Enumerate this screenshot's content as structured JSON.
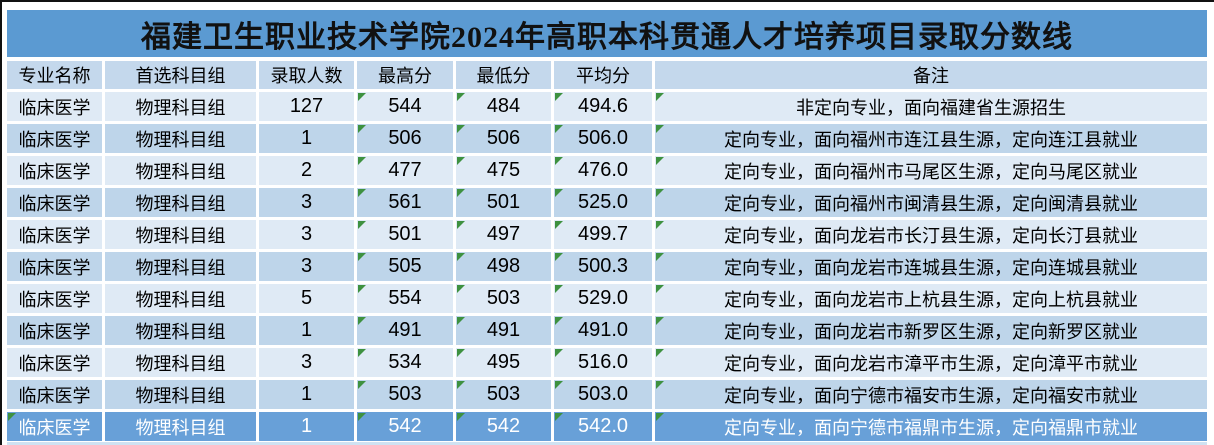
{
  "title": "福建卫生职业技术学院2024年高职本科贯通人才培养项目录取分数线",
  "columns": [
    {
      "key": "major",
      "label": "专业名称"
    },
    {
      "key": "group",
      "label": "首选科目组"
    },
    {
      "key": "count",
      "label": "录取人数"
    },
    {
      "key": "max",
      "label": "最高分"
    },
    {
      "key": "min",
      "label": "最低分"
    },
    {
      "key": "avg",
      "label": "平均分"
    },
    {
      "key": "remark",
      "label": "备注"
    }
  ],
  "rows": [
    {
      "major": "临床医学",
      "group": "物理科目组",
      "count": "127",
      "max": "544",
      "min": "484",
      "avg": "494.6",
      "remark": "非定向专业，面向福建省生源招生",
      "style": "light",
      "indicators": [
        "max",
        "min",
        "avg",
        "remark"
      ]
    },
    {
      "major": "临床医学",
      "group": "物理科目组",
      "count": "1",
      "max": "506",
      "min": "506",
      "avg": "506.0",
      "remark": "定向专业，面向福州市连江县生源，定向连江县就业",
      "style": "medium",
      "indicators": [
        "max",
        "min",
        "avg",
        "remark"
      ]
    },
    {
      "major": "临床医学",
      "group": "物理科目组",
      "count": "2",
      "max": "477",
      "min": "475",
      "avg": "476.0",
      "remark": "定向专业，面向福州市马尾区生源，定向马尾区就业",
      "style": "light",
      "indicators": [
        "max",
        "min",
        "avg",
        "remark"
      ]
    },
    {
      "major": "临床医学",
      "group": "物理科目组",
      "count": "3",
      "max": "561",
      "min": "501",
      "avg": "525.0",
      "remark": "定向专业，面向福州市闽清县生源，定向闽清县就业",
      "style": "medium",
      "indicators": [
        "max",
        "min",
        "avg",
        "remark"
      ]
    },
    {
      "major": "临床医学",
      "group": "物理科目组",
      "count": "3",
      "max": "501",
      "min": "497",
      "avg": "499.7",
      "remark": "定向专业，面向龙岩市长汀县生源，定向长汀县就业",
      "style": "light",
      "indicators": [
        "max",
        "min",
        "avg",
        "remark"
      ]
    },
    {
      "major": "临床医学",
      "group": "物理科目组",
      "count": "3",
      "max": "505",
      "min": "498",
      "avg": "500.3",
      "remark": "定向专业，面向龙岩市连城县生源，定向连城县就业",
      "style": "medium",
      "indicators": [
        "max",
        "min",
        "avg",
        "remark"
      ]
    },
    {
      "major": "临床医学",
      "group": "物理科目组",
      "count": "5",
      "max": "554",
      "min": "503",
      "avg": "529.0",
      "remark": "定向专业，面向龙岩市上杭县生源，定向上杭县就业",
      "style": "light",
      "indicators": [
        "max",
        "min",
        "avg",
        "remark"
      ]
    },
    {
      "major": "临床医学",
      "group": "物理科目组",
      "count": "1",
      "max": "491",
      "min": "491",
      "avg": "491.0",
      "remark": "定向专业，面向龙岩市新罗区生源，定向新罗区就业",
      "style": "medium",
      "indicators": [
        "max",
        "min",
        "avg",
        "remark"
      ]
    },
    {
      "major": "临床医学",
      "group": "物理科目组",
      "count": "3",
      "max": "534",
      "min": "495",
      "avg": "516.0",
      "remark": "定向专业，面向龙岩市漳平市生源，定向漳平市就业",
      "style": "light",
      "indicators": [
        "max",
        "min",
        "avg",
        "remark"
      ]
    },
    {
      "major": "临床医学",
      "group": "物理科目组",
      "count": "1",
      "max": "503",
      "min": "503",
      "avg": "503.0",
      "remark": "定向专业，面向宁德市福安市生源，定向福安市就业",
      "style": "medium",
      "indicators": [
        "max",
        "min",
        "avg",
        "remark"
      ]
    },
    {
      "major": "临床医学",
      "group": "物理科目组",
      "count": "1",
      "max": "542",
      "min": "542",
      "avg": "542.0",
      "remark": "定向专业，面向宁德市福鼎市生源，定向福鼎市就业",
      "style": "selected",
      "indicators": [
        "major",
        "max",
        "min",
        "avg",
        "remark"
      ]
    }
  ],
  "palette": {
    "title_bg": "#5b9ad2",
    "header_bg": "#c4d8ec",
    "row_light": "#dfeaf5",
    "row_medium": "#bed5ea",
    "row_selected_bg": "#68a0d8",
    "row_selected_text": "#ffffff",
    "indicator_green": "#3e9140"
  },
  "icons": {
    "cell_error_indicator": "green-triangle"
  }
}
